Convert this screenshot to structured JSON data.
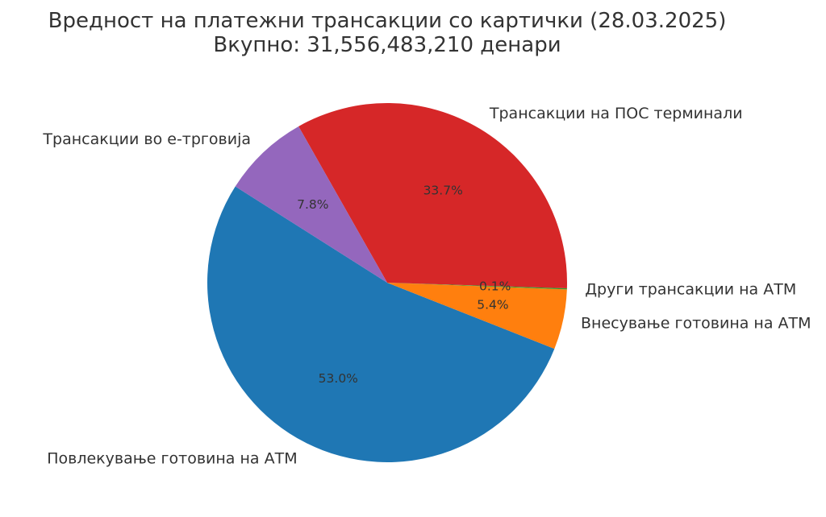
{
  "chart_data": {
    "type": "pie",
    "title": "Вредност на платежни трансакции со картички (28.03.2025)",
    "subtitle": "Вкупно: 31,556,483,210 денари",
    "slices": [
      {
        "label": "Повлекување готовина на АТМ",
        "value": 53.0,
        "pct_label": "53.0%",
        "color": "#1f77b4"
      },
      {
        "label": "Внесување готовина на АТМ",
        "value": 5.4,
        "pct_label": "5.4%",
        "color": "#ff7f0e"
      },
      {
        "label": "Други трансакции на АТМ",
        "value": 0.1,
        "pct_label": "0.1%",
        "color": "#2ca02c"
      },
      {
        "label": "Трансакции на ПОС терминали",
        "value": 33.7,
        "pct_label": "33.7%",
        "color": "#d62728"
      },
      {
        "label": "Трансакции во е-трговија",
        "value": 7.8,
        "pct_label": "7.8%",
        "color": "#9467bd"
      }
    ]
  }
}
